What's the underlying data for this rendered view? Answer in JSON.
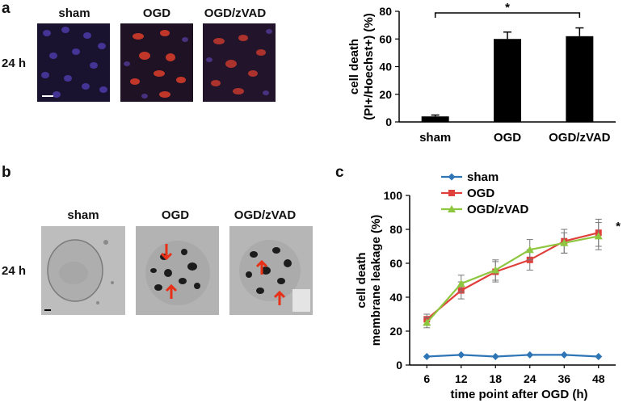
{
  "panel_a": {
    "letter": "a",
    "row_label": "24 h",
    "columns": [
      "sham",
      "OGD",
      "OGD/zVAD"
    ]
  },
  "panel_b": {
    "letter": "b",
    "row_label": "24 h",
    "columns": [
      "sham",
      "OGD",
      "OGD/zVAD"
    ]
  },
  "panel_c": {
    "letter": "c"
  },
  "colors": {
    "sham": "#2E75B6",
    "OGD": "#E0403C",
    "OGD/zVAD": "#8DC63F",
    "bar": "#000000",
    "arrow": "#E83018"
  },
  "chart_data": [
    {
      "id": "bar-chart-a",
      "type": "bar",
      "title": "",
      "xlabel": "",
      "ylabel": "cell death\n(PI+/Hoechst+) (%)",
      "ylabel_lines": [
        "cell death",
        "(PI+/Hoechst+) (%)"
      ],
      "ylim": [
        0,
        80
      ],
      "yticks": [
        "0",
        "20",
        "40",
        "60",
        "80"
      ],
      "categories": [
        "sham",
        "OGD",
        "OGD/zVAD"
      ],
      "values": [
        4,
        60,
        62
      ],
      "errors": [
        1,
        5,
        6
      ],
      "annotation": "*"
    },
    {
      "id": "line-chart-c",
      "type": "line",
      "title": "",
      "xlabel": "time point after OGD (h)",
      "ylabel": "cell death\nmembrane leakage (%)",
      "ylabel_lines": [
        "cell death",
        "membrane leakage (%)"
      ],
      "ylim": [
        0,
        100
      ],
      "yticks": [
        "0",
        "20",
        "40",
        "60",
        "80",
        "100"
      ],
      "x": [
        "6",
        "12",
        "18",
        "24",
        "36",
        "48"
      ],
      "legend_position": "top-left",
      "annotation": "*",
      "series": [
        {
          "name": "sham",
          "values": [
            5,
            6,
            5,
            6,
            6,
            5
          ],
          "errors": [
            0.5,
            0.5,
            0.5,
            0.5,
            0.5,
            0.5
          ]
        },
        {
          "name": "OGD",
          "values": [
            27,
            44,
            55,
            62,
            73,
            78
          ],
          "errors": [
            3,
            5,
            6,
            6,
            7,
            8
          ]
        },
        {
          "name": "OGD/zVAD",
          "values": [
            25,
            48,
            56,
            68,
            72,
            76
          ],
          "errors": [
            3,
            5,
            6,
            6,
            6,
            8
          ]
        }
      ]
    }
  ]
}
